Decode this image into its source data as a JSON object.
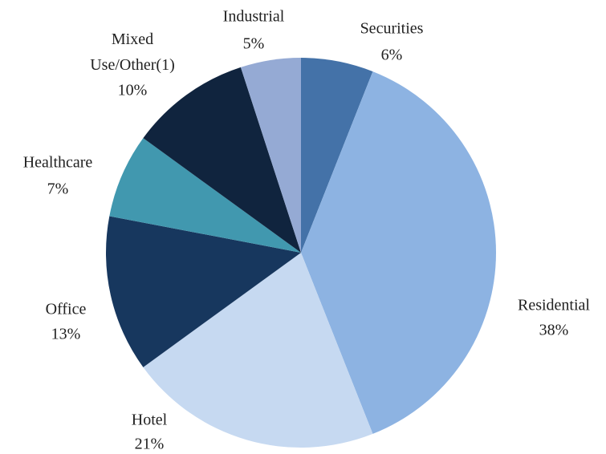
{
  "chart_data": {
    "type": "pie",
    "categories": [
      "Securities",
      "Residential",
      "Hotel",
      "Office",
      "Healthcare",
      "Mixed Use/Other(1)",
      "Industrial"
    ],
    "values": [
      6,
      38,
      21,
      13,
      7,
      10,
      5
    ],
    "value_labels": [
      "6%",
      "38%",
      "21%",
      "13%",
      "7%",
      "10%",
      "5%"
    ],
    "colors": [
      "#4472a8",
      "#8db3e2",
      "#c6d9f1",
      "#17375e",
      "#4198af",
      "#10243e",
      "#95aad4"
    ]
  }
}
